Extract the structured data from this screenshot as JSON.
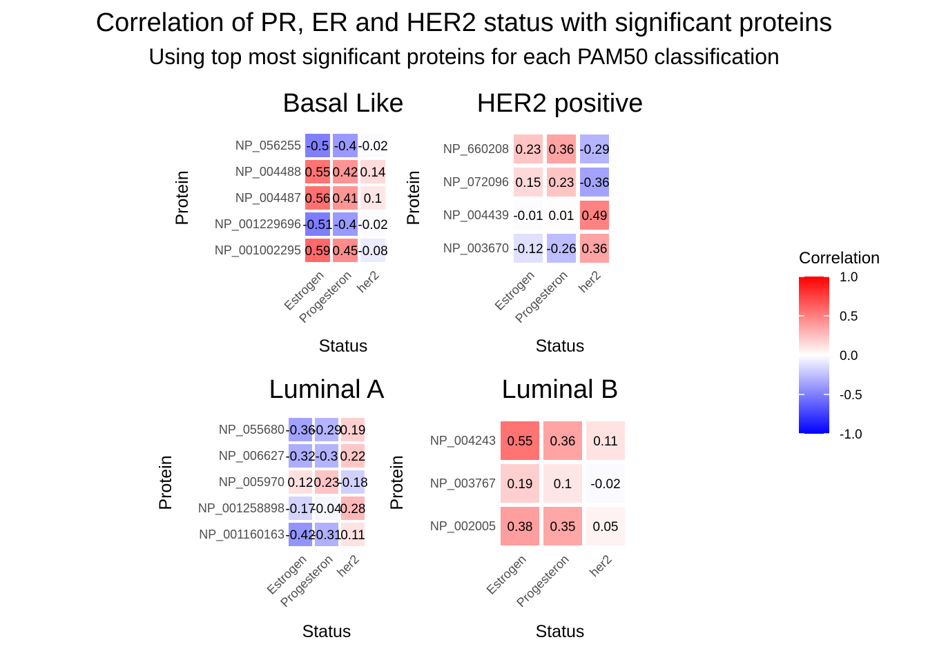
{
  "title": "Correlation of PR, ER and HER2 status with significant proteins",
  "subtitle": "Using top most significant proteins for each PAM50 classification",
  "chart_data": {
    "type": "heatmap",
    "legend": {
      "title": "Correlation",
      "ticks": [
        "1.0",
        "0.5",
        "0.0",
        "-0.5",
        "-1.0"
      ],
      "range": [
        -1.0,
        1.0
      ],
      "low_color": "#0000ff",
      "mid_color": "#ffffff",
      "high_color": "#ff0000",
      "position": "right"
    },
    "panels": [
      {
        "name": "Basal Like",
        "xlabel": "Status",
        "ylabel": "Protein",
        "columns": [
          "Estrogen",
          "Progesteron",
          "her2"
        ],
        "rows": [
          "NP_056255",
          "NP_004488",
          "NP_004487",
          "NP_001229696",
          "NP_001002295"
        ],
        "values": [
          [
            -0.5,
            -0.4,
            -0.02
          ],
          [
            0.55,
            0.42,
            0.14
          ],
          [
            0.56,
            0.41,
            0.1
          ],
          [
            -0.51,
            -0.4,
            -0.02
          ],
          [
            0.59,
            0.45,
            -0.08
          ]
        ],
        "labels": [
          [
            "-0.5",
            "-0.4",
            "-0.02"
          ],
          [
            "0.55",
            "0.42",
            "0.14"
          ],
          [
            "0.56",
            "0.41",
            "0.1"
          ],
          [
            "-0.51",
            "-0.4",
            "-0.02"
          ],
          [
            "0.59",
            "0.45",
            "-0.08"
          ]
        ]
      },
      {
        "name": "HER2 positive",
        "xlabel": "Status",
        "ylabel": "Protein",
        "columns": [
          "Estrogen",
          "Progesteron",
          "her2"
        ],
        "rows": [
          "NP_660208",
          "NP_072096",
          "NP_004439",
          "NP_003670"
        ],
        "values": [
          [
            0.23,
            0.36,
            -0.29
          ],
          [
            0.15,
            0.23,
            -0.36
          ],
          [
            -0.01,
            0.01,
            0.49
          ],
          [
            -0.12,
            -0.26,
            0.36
          ]
        ],
        "labels": [
          [
            "0.23",
            "0.36",
            "-0.29"
          ],
          [
            "0.15",
            "0.23",
            "-0.36"
          ],
          [
            "-0.01",
            "0.01",
            "0.49"
          ],
          [
            "-0.12",
            "-0.26",
            "0.36"
          ]
        ]
      },
      {
        "name": "Luminal A",
        "xlabel": "Status",
        "ylabel": "Protein",
        "columns": [
          "Estrogen",
          "Progesteron",
          "her2"
        ],
        "rows": [
          "NP_055680",
          "NP_006627",
          "NP_005970",
          "NP_001258898",
          "NP_001160163"
        ],
        "values": [
          [
            -0.36,
            -0.29,
            0.19
          ],
          [
            -0.32,
            -0.3,
            0.22
          ],
          [
            0.12,
            0.23,
            -0.18
          ],
          [
            -0.17,
            -0.04,
            0.28
          ],
          [
            -0.42,
            -0.31,
            0.11
          ]
        ],
        "labels": [
          [
            "-0.36",
            "-0.29",
            "0.19"
          ],
          [
            "-0.32",
            "-0.3",
            "0.22"
          ],
          [
            "0.12",
            "0.23",
            "-0.18"
          ],
          [
            "-0.17",
            "-0.04",
            "0.28"
          ],
          [
            "-0.42",
            "-0.31",
            "0.11"
          ]
        ]
      },
      {
        "name": "Luminal B",
        "xlabel": "Status",
        "ylabel": "Protein",
        "columns": [
          "Estrogen",
          "Progesteron",
          "her2"
        ],
        "rows": [
          "NP_004243",
          "NP_003767",
          "NP_002005"
        ],
        "values": [
          [
            0.55,
            0.36,
            0.11
          ],
          [
            0.19,
            0.1,
            -0.02
          ],
          [
            0.38,
            0.35,
            0.05
          ]
        ],
        "labels": [
          [
            "0.55",
            "0.36",
            "0.11"
          ],
          [
            "0.19",
            "0.1",
            "-0.02"
          ],
          [
            "0.38",
            "0.35",
            "0.05"
          ]
        ]
      }
    ]
  }
}
